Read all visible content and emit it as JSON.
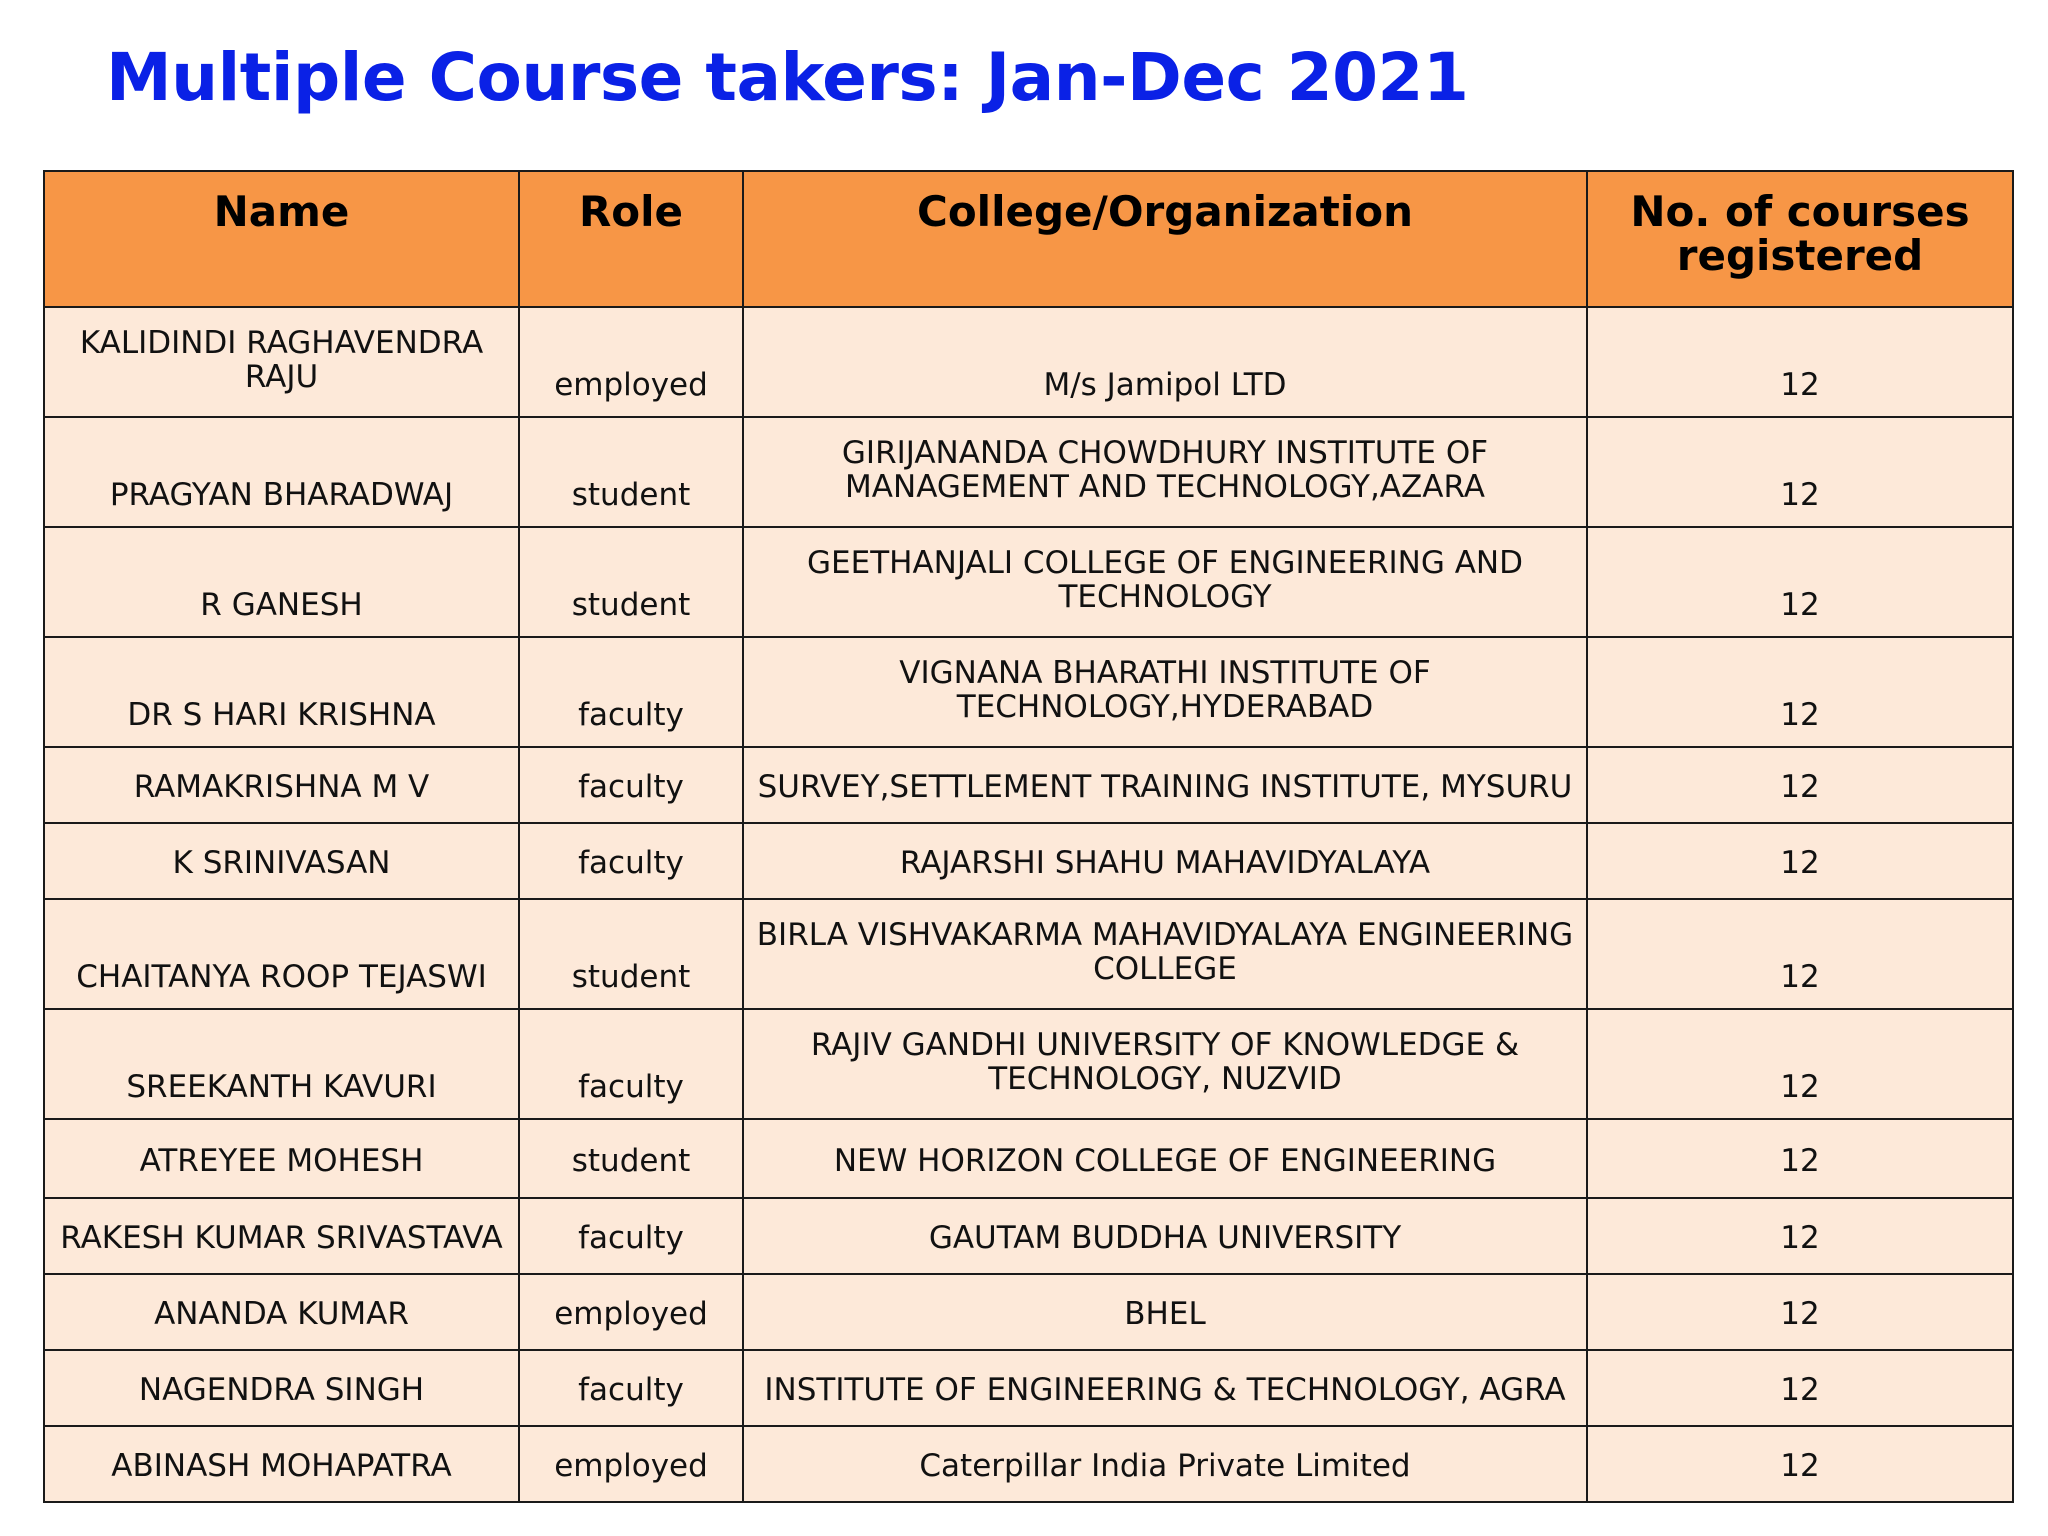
{
  "title": "Multiple Course takers: Jan-Dec 2021",
  "table": {
    "headers": [
      "Name",
      "Role",
      "College/Organization",
      "No. of courses registered"
    ],
    "rows": [
      {
        "name": "KALIDINDI RAGHAVENDRA RAJU",
        "role": "employed",
        "org": "M/s Jamipol LTD",
        "courses": "12"
      },
      {
        "name": "PRAGYAN BHARADWAJ",
        "role": "student",
        "org": "GIRIJANANDA CHOWDHURY INSTITUTE OF MANAGEMENT AND TECHNOLOGY,AZARA",
        "courses": "12"
      },
      {
        "name": "R GANESH",
        "role": "student",
        "org": "GEETHANJALI COLLEGE OF ENGINEERING AND TECHNOLOGY",
        "courses": "12"
      },
      {
        "name": "DR S HARI KRISHNA",
        "role": "faculty",
        "org": "VIGNANA BHARATHI INSTITUTE OF TECHNOLOGY,HYDERABAD",
        "courses": "12"
      },
      {
        "name": "RAMAKRISHNA M V",
        "role": "faculty",
        "org": "SURVEY,SETTLEMENT TRAINING INSTITUTE, MYSURU",
        "courses": "12"
      },
      {
        "name": "K SRINIVASAN",
        "role": "faculty",
        "org": "RAJARSHI SHAHU MAHAVIDYALAYA",
        "courses": "12"
      },
      {
        "name": "CHAITANYA ROOP TEJASWI",
        "role": "student",
        "org": "BIRLA VISHVAKARMA MAHAVIDYALAYA ENGINEERING COLLEGE",
        "courses": "12"
      },
      {
        "name": "SREEKANTH KAVURI",
        "role": "faculty",
        "org": "RAJIV GANDHI UNIVERSITY OF KNOWLEDGE & TECHNOLOGY, NUZVID",
        "courses": "12"
      },
      {
        "name": "ATREYEE MOHESH",
        "role": "student",
        "org": "NEW HORIZON COLLEGE OF ENGINEERING",
        "courses": "12"
      },
      {
        "name": "RAKESH KUMAR SRIVASTAVA",
        "role": "faculty",
        "org": "GAUTAM BUDDHA UNIVERSITY",
        "courses": "12"
      },
      {
        "name": "ANANDA KUMAR",
        "role": "employed",
        "org": "BHEL",
        "courses": "12"
      },
      {
        "name": "NAGENDRA SINGH",
        "role": "faculty",
        "org": "INSTITUTE OF ENGINEERING & TECHNOLOGY, AGRA",
        "courses": "12"
      },
      {
        "name": "ABINASH MOHAPATRA",
        "role": "employed",
        "org": "Caterpillar India Private Limited",
        "courses": "12"
      }
    ]
  }
}
